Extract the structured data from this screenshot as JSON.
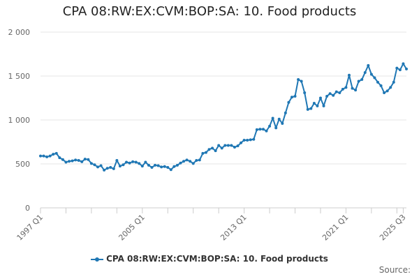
{
  "colors": {
    "series": "#1f77b4",
    "grid": "#e6e6e6",
    "axis": "#cccccc"
  },
  "chart_data": {
    "type": "line",
    "title": "CPA 08:RW:EX:CVM:BOP:SA: 10. Food products",
    "xlabel": "",
    "ylabel": "",
    "ylim": [
      0,
      2000
    ],
    "yticks": [
      0,
      500,
      1000,
      1500,
      2000
    ],
    "ytick_labels": [
      "0",
      "500",
      "1 000",
      "1 500",
      "2 000"
    ],
    "xtick_labels": [
      "1997 Q1",
      "2005 Q1",
      "2013 Q1",
      "2021 Q1",
      "2025 Q3"
    ],
    "xtick_index": [
      0,
      32,
      64,
      96,
      114
    ],
    "minor_xtick_index": [
      0,
      8,
      16,
      24,
      32,
      40,
      48,
      56,
      64,
      72,
      80,
      88,
      96,
      104,
      112,
      114
    ],
    "legend": "CPA 08:RW:EX:CVM:BOP:SA: 10. Food products",
    "source_label": "Source:",
    "series": [
      {
        "name": "CPA 08:RW:EX:CVM:BOP:SA: 10. Food products",
        "start": "1997 Q1",
        "values": [
          590,
          590,
          580,
          590,
          610,
          620,
          570,
          550,
          520,
          530,
          535,
          545,
          540,
          525,
          555,
          550,
          505,
          490,
          465,
          480,
          430,
          450,
          460,
          445,
          540,
          475,
          490,
          520,
          510,
          525,
          520,
          505,
          475,
          520,
          485,
          460,
          485,
          480,
          465,
          470,
          460,
          435,
          470,
          485,
          510,
          530,
          545,
          530,
          505,
          540,
          545,
          620,
          630,
          665,
          680,
          650,
          710,
          680,
          710,
          710,
          710,
          690,
          705,
          740,
          770,
          770,
          775,
          780,
          890,
          895,
          895,
          875,
          930,
          1020,
          910,
          1010,
          960,
          1080,
          1200,
          1260,
          1270,
          1460,
          1440,
          1310,
          1120,
          1130,
          1190,
          1160,
          1250,
          1160,
          1270,
          1300,
          1280,
          1320,
          1310,
          1350,
          1370,
          1510,
          1360,
          1340,
          1440,
          1460,
          1540,
          1620,
          1520,
          1480,
          1430,
          1390,
          1310,
          1330,
          1370,
          1430,
          1590,
          1570,
          1640,
          1580
        ]
      }
    ]
  }
}
